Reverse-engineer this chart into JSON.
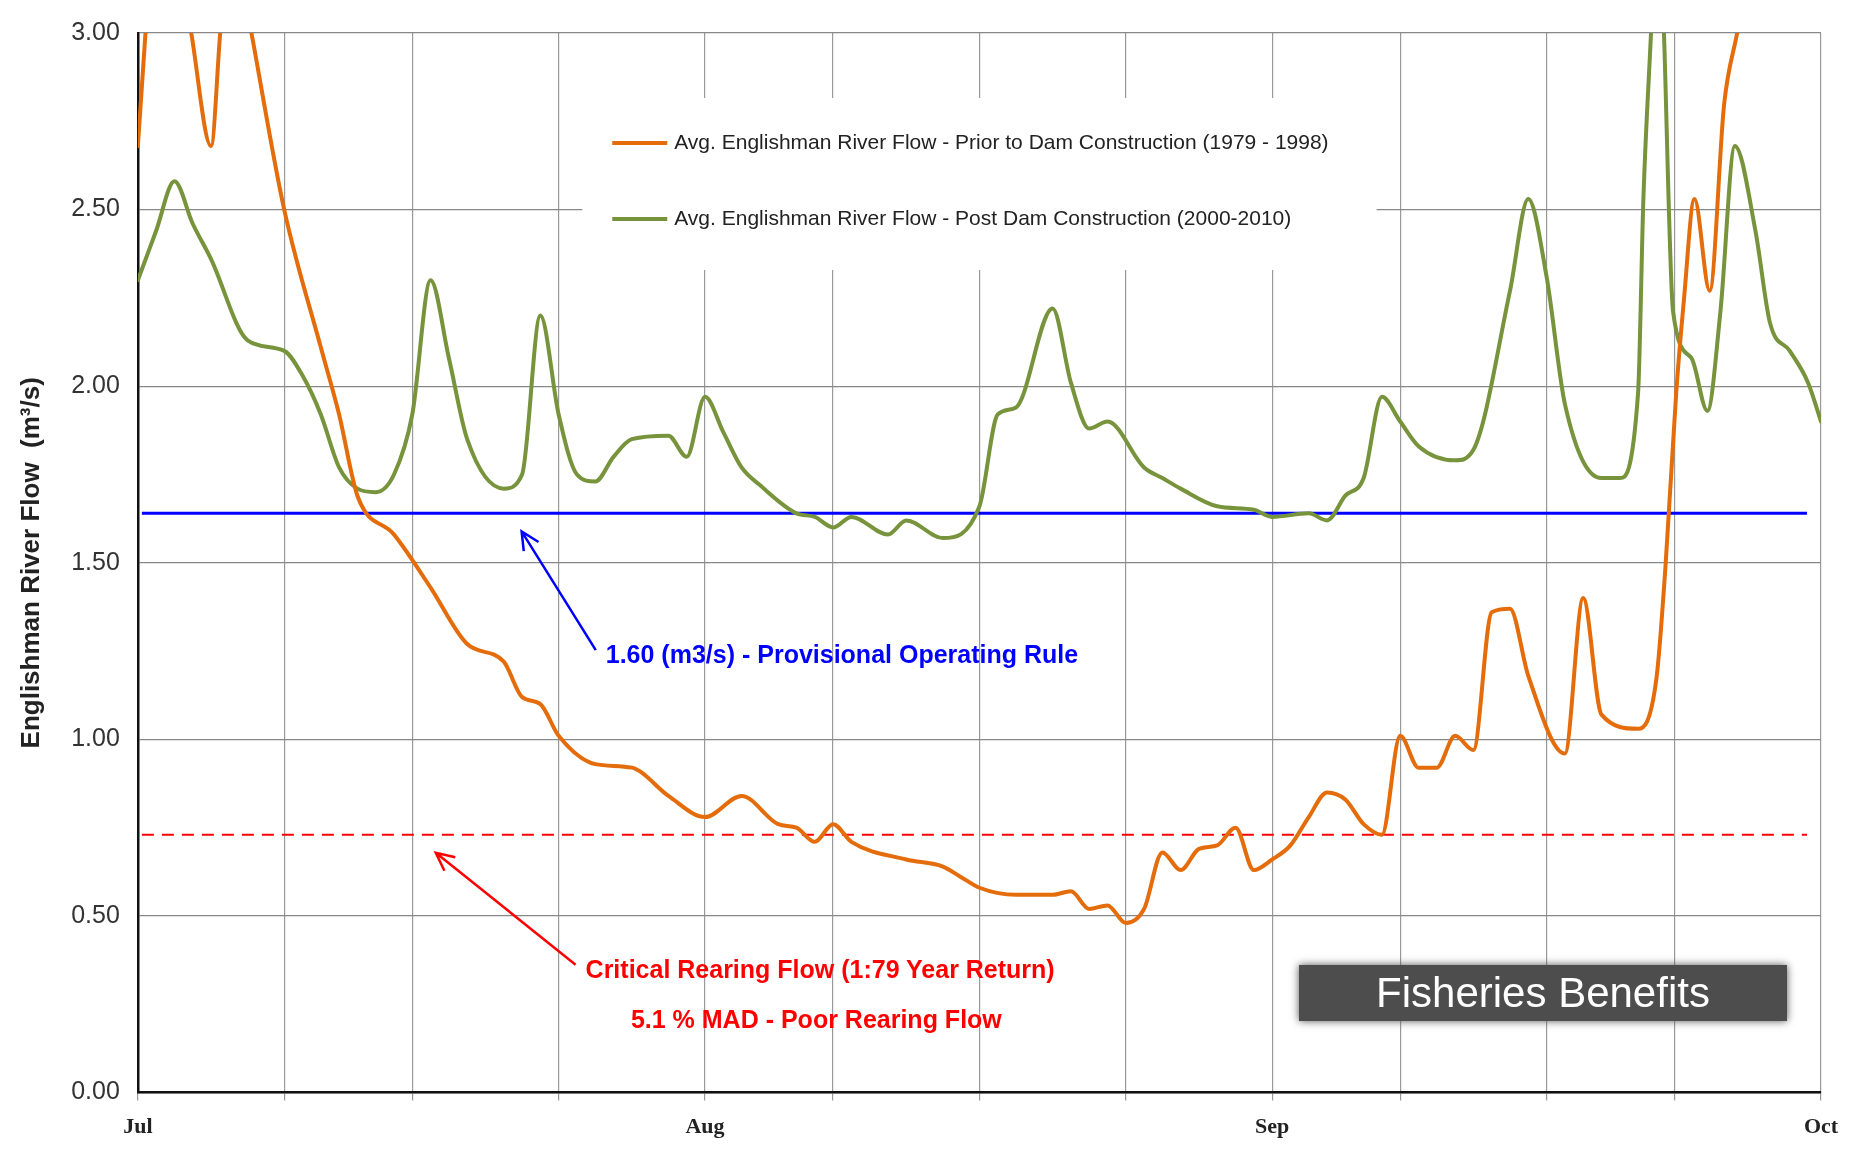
{
  "chart_data": {
    "type": "line",
    "ylabel": "Englishman River Flow  (m³/s)",
    "xlim": [
      "--07-01",
      "--10-01"
    ],
    "xticks": [
      {
        "value": "--07-01",
        "label": "Jul"
      },
      {
        "value": "--07-09",
        "label": null
      },
      {
        "value": "--07-16",
        "label": null
      },
      {
        "value": "--07-24",
        "label": null
      },
      {
        "value": "--08-01",
        "label": "Aug"
      },
      {
        "value": "--08-08",
        "label": null
      },
      {
        "value": "--08-16",
        "label": null
      },
      {
        "value": "--08-24",
        "label": null
      },
      {
        "value": "--09-01",
        "label": "Sep"
      },
      {
        "value": "--09-08",
        "label": null
      },
      {
        "value": "--09-16",
        "label": null
      },
      {
        "value": "--09-23",
        "label": null
      },
      {
        "value": "--10-01",
        "label": "Oct"
      }
    ],
    "ylim": [
      0,
      3
    ],
    "yticks": [
      {
        "value": 0,
        "label": "0.00"
      },
      {
        "value": 0.5,
        "label": "0.50"
      },
      {
        "value": 1,
        "label": "1.00"
      },
      {
        "value": 1.5,
        "label": "1.50"
      },
      {
        "value": 2,
        "label": "2.00"
      },
      {
        "value": 2.5,
        "label": "2.50"
      },
      {
        "value": 3,
        "label": "3.00"
      }
    ],
    "grid": true,
    "legend": "top",
    "line_style": "solid",
    "marker": "none",
    "series": [
      {
        "name": "Avg. Englishman River Flow - Prior to Dam Construction (1979 - 1998)",
        "color": "#e46c0a",
        "x": [
          "--07-01",
          "--07-01T10:00",
          "--07-02T17:00",
          "--07-03T22:00",
          "--07-05",
          "--07-05T12:00",
          "--07-06T07:00",
          "--07-07T05:00",
          "--07-09",
          "--07-11",
          "--07-12",
          "--07-13",
          "--07-15",
          "--07-17",
          "--07-19",
          "--07-21",
          "--07-22",
          "--07-23",
          "--07-24",
          "--07-26",
          "--07-28",
          "--07-30",
          "--08-01",
          "--08-03",
          "--08-05",
          "--08-06",
          "--08-07",
          "--08-08",
          "--08-09",
          "--08-12",
          "--08-14",
          "--08-15",
          "--08-16",
          "--08-18",
          "--08-20",
          "--08-21",
          "--08-22",
          "--08-23",
          "--08-24",
          "--08-25",
          "--08-26",
          "--08-27",
          "--08-28",
          "--08-29",
          "--08-30",
          "--08-31",
          "--09-01",
          "--09-02",
          "--09-03",
          "--09-04",
          "--09-05",
          "--09-06",
          "--09-07",
          "--09-08",
          "--09-09",
          "--09-10",
          "--09-11",
          "--09-12",
          "--09-13",
          "--09-14",
          "--09-15",
          "--09-17",
          "--09-18",
          "--09-19",
          "--09-21",
          "--09-22",
          "--09-22T12:00",
          "--09-23T02:00",
          "--09-23T12:00",
          "--09-24T02:00",
          "--09-24T22:00",
          "--09-25T17:00",
          "--09-26T10:00"
        ],
        "values": [
          2.68,
          3.0,
          null,
          3.0,
          2.68,
          3.0,
          null,
          3.0,
          2.5,
          2.11,
          1.92,
          1.69,
          1.58,
          1.43,
          1.27,
          1.22,
          1.12,
          1.1,
          1.01,
          0.93,
          0.92,
          0.84,
          0.78,
          0.84,
          0.76,
          0.75,
          0.71,
          0.76,
          0.71,
          0.66,
          0.64,
          0.61,
          0.58,
          0.56,
          0.56,
          0.57,
          0.52,
          0.53,
          0.48,
          0.52,
          0.68,
          0.63,
          0.69,
          0.7,
          0.75,
          0.63,
          0.66,
          0.7,
          0.78,
          0.85,
          0.83,
          0.76,
          0.73,
          1.01,
          0.92,
          0.92,
          1.01,
          0.97,
          1.36,
          1.37,
          1.18,
          0.96,
          1.4,
          1.07,
          1.03,
          1.17,
          1.49,
          1.98,
          2.24,
          2.53,
          2.27,
          2.8,
          3.0
        ]
      },
      {
        "name": "Avg. Englishman River Flow - Post Dam Construction (2000-2010)",
        "color": "#77933c",
        "x": [
          "--07-01",
          "--07-02",
          "--07-03",
          "--07-04",
          "--07-05",
          "--07-07",
          "--07-09",
          "--07-10",
          "--07-11",
          "--07-12",
          "--07-13",
          "--07-14",
          "--07-15",
          "--07-16",
          "--07-17",
          "--07-18",
          "--07-19",
          "--07-21",
          "--07-22",
          "--07-23",
          "--07-24",
          "--07-25",
          "--07-26",
          "--07-27",
          "--07-28",
          "--07-30",
          "--07-31",
          "--08-01",
          "--08-02",
          "--08-03",
          "--08-04",
          "--08-06",
          "--08-07",
          "--08-08",
          "--08-09",
          "--08-11",
          "--08-12",
          "--08-14",
          "--08-16",
          "--08-17",
          "--08-18",
          "--08-20",
          "--08-21",
          "--08-22",
          "--08-23",
          "--08-25",
          "--08-26",
          "--08-27",
          "--08-29",
          "--08-31",
          "--09-01",
          "--09-03",
          "--09-04",
          "--09-05",
          "--09-06",
          "--09-07",
          "--09-08",
          "--09-09",
          "--09-11",
          "--09-12",
          "--09-14",
          "--09-15",
          "--09-16",
          "--09-17",
          "--09-19",
          "--09-20",
          "--09-21",
          "--09-21T07:00",
          "--09-21T17:00",
          "--09-22",
          "--09-22T10:00",
          "--09-22T22:00",
          "--09-23T22:00",
          "--09-24T19:00",
          "--09-25T12:00",
          "--09-26T07:00",
          "--09-27T10:00",
          "--09-28T05:00",
          "--09-29T07:00",
          "--09-30T07:00",
          "--10-01"
        ],
        "values": [
          2.3,
          2.44,
          2.58,
          2.46,
          2.36,
          2.13,
          2.1,
          2.03,
          1.92,
          1.77,
          1.71,
          1.7,
          1.75,
          1.92,
          2.3,
          2.08,
          1.85,
          1.71,
          1.75,
          2.2,
          1.92,
          1.75,
          1.73,
          1.8,
          1.85,
          1.86,
          1.8,
          1.97,
          1.87,
          1.77,
          1.72,
          1.64,
          1.63,
          1.6,
          1.63,
          1.58,
          1.62,
          1.57,
          1.66,
          1.92,
          1.94,
          2.22,
          2.01,
          1.88,
          1.9,
          1.77,
          1.74,
          1.71,
          1.66,
          1.65,
          1.63,
          1.64,
          1.62,
          1.69,
          1.74,
          1.97,
          1.9,
          1.83,
          1.79,
          1.82,
          2.27,
          2.53,
          2.31,
          1.95,
          1.74,
          1.74,
          1.98,
          2.53,
          3.0,
          null,
          3.0,
          2.21,
          2.08,
          1.93,
          2.21,
          2.68,
          2.44,
          2.18,
          2.1,
          2.01,
          1.9
        ]
      }
    ],
    "ref_lines": [
      {
        "axis": "y",
        "value": 1.64,
        "label": "1.60 (m3/s) - Provisional Operating Rule",
        "color": "#0000ff",
        "line_style": "solid"
      },
      {
        "axis": "y",
        "value": 0.73,
        "label": "Critical Rearing Flow (1:79 Year Return)",
        "color": "#ff0000",
        "line_style": "dashed"
      }
    ],
    "annotations": [
      "5.1 % MAD - Poor Rearing Flow",
      "Fisheries Benefits"
    ]
  }
}
